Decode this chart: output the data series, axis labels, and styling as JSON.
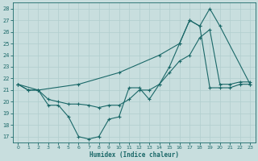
{
  "xlabel": "Humidex (Indice chaleur)",
  "background_color": "#c8dede",
  "line_color": "#1a6868",
  "grid_color": "#b0cece",
  "xlim": [
    -0.5,
    23.5
  ],
  "ylim": [
    16.5,
    28.5
  ],
  "yticks": [
    17,
    18,
    19,
    20,
    21,
    22,
    23,
    24,
    25,
    26,
    27,
    28
  ],
  "xticks": [
    0,
    1,
    2,
    3,
    4,
    5,
    6,
    7,
    8,
    9,
    10,
    11,
    12,
    13,
    14,
    15,
    16,
    17,
    18,
    19,
    20,
    21,
    22,
    23
  ],
  "series": [
    {
      "x": [
        0,
        1,
        2,
        3,
        4,
        5,
        6,
        7,
        8,
        9,
        10,
        11,
        12,
        13,
        14,
        15,
        16,
        17,
        18,
        19,
        20,
        21,
        22,
        23
      ],
      "y": [
        21.5,
        21.0,
        21.0,
        19.7,
        19.7,
        18.7,
        17.0,
        16.8,
        17.0,
        18.5,
        18.7,
        21.2,
        21.2,
        20.2,
        21.5,
        23.0,
        25.0,
        27.0,
        26.5,
        21.2,
        21.2,
        21.2,
        21.5,
        21.5
      ]
    },
    {
      "x": [
        0,
        1,
        2,
        3,
        4,
        5,
        6,
        7,
        8,
        9,
        10,
        11,
        12,
        13,
        14,
        15,
        16,
        17,
        18,
        19,
        20,
        21,
        22,
        23
      ],
      "y": [
        21.5,
        21.0,
        21.0,
        20.2,
        20.0,
        19.8,
        19.8,
        19.7,
        19.5,
        19.7,
        19.7,
        20.2,
        21.0,
        21.0,
        21.5,
        22.5,
        23.5,
        24.0,
        25.5,
        26.2,
        21.5,
        21.5,
        21.7,
        21.7
      ]
    },
    {
      "x": [
        0,
        2,
        6,
        10,
        14,
        16,
        17,
        18,
        19,
        20,
        23
      ],
      "y": [
        21.5,
        21.0,
        21.5,
        22.5,
        24.0,
        25.0,
        27.0,
        26.5,
        28.0,
        26.5,
        21.5
      ]
    }
  ]
}
